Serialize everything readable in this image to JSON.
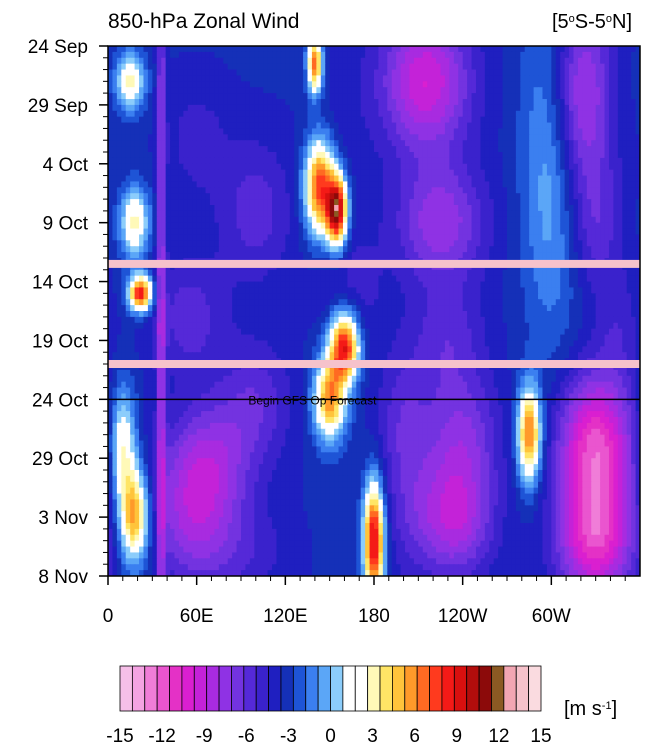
{
  "chart_data": {
    "type": "heatmap",
    "title": "850-hPa Zonal Wind",
    "region_label_parts": [
      "[5",
      "o",
      "S-5",
      "o",
      "N]"
    ],
    "y_axis": {
      "ticks": [
        "24 Sep",
        "29 Sep",
        "4 Oct",
        "9 Oct",
        "14 Oct",
        "19 Oct",
        "24 Oct",
        "29 Oct",
        "3 Nov",
        "8 Nov"
      ],
      "day_offsets": [
        0,
        5,
        10,
        15,
        20,
        25,
        30,
        35,
        40,
        45
      ],
      "range_days": [
        0,
        45
      ]
    },
    "x_axis": {
      "ticks": [
        "0",
        "60E",
        "120E",
        "180",
        "120W",
        "60W"
      ],
      "lon_values": [
        0,
        60,
        120,
        180,
        240,
        300
      ],
      "range_lon": [
        0,
        360
      ]
    },
    "forecast_line": {
      "label": "Begin GFS Op Forecast",
      "day_offset": 30
    },
    "missing_data_days": [
      18.5,
      27
    ],
    "colorbar": {
      "unit_parts": [
        "[m s",
        "-1",
        "]"
      ],
      "tick_labels": [
        "-15",
        "-12",
        "-9",
        "-6",
        "-3",
        "0",
        "3",
        "6",
        "9",
        "12",
        "15"
      ],
      "tick_values": [
        -15,
        -12,
        -9,
        -6,
        -3,
        0,
        3,
        6,
        9,
        12,
        15
      ],
      "colors": [
        "#f6bfe8",
        "#f4a3e2",
        "#f07dd8",
        "#ea55cf",
        "#e431c6",
        "#da1fd0",
        "#c422d8",
        "#a82be0",
        "#8f32e4",
        "#7333e0",
        "#5529d8",
        "#3a22cc",
        "#1f1fc0",
        "#1530b8",
        "#1e54d6",
        "#3b7ff0",
        "#5ba6f7",
        "#8ccdfb",
        "#ffffff",
        "#ffffff",
        "#fff9b8",
        "#ffe566",
        "#ffc43b",
        "#ff9a2a",
        "#ff6a22",
        "#ff3a1e",
        "#f41a17",
        "#d8100f",
        "#b20d0c",
        "#8c0a0a",
        "#8b5a23",
        "#f2a6b3",
        "#f6c2cb",
        "#fadbe0"
      ]
    },
    "wind_features": [
      {
        "lon": 15,
        "day": 3,
        "dlon": 10,
        "dday": 2.5,
        "value": 3
      },
      {
        "lon": 18,
        "day": 15,
        "dlon": 10,
        "dday": 3,
        "value": 3
      },
      {
        "lon": 22,
        "day": 21,
        "dlon": 8,
        "dday": 1.5,
        "value": 9
      },
      {
        "lon": 10,
        "day": 34,
        "dlon": 9,
        "dday": 5,
        "value": 3
      },
      {
        "lon": 18,
        "day": 40,
        "dlon": 10,
        "dday": 4,
        "value": 6
      },
      {
        "lon": 36,
        "day": 22,
        "dlon": 3,
        "dday": 45,
        "value": -8
      },
      {
        "lon": 60,
        "day": 8,
        "dlon": 22,
        "dday": 5,
        "value": -5
      },
      {
        "lon": 55,
        "day": 23,
        "dlon": 25,
        "dday": 5,
        "value": -6
      },
      {
        "lon": 58,
        "day": 40,
        "dlon": 28,
        "dday": 6,
        "value": -8
      },
      {
        "lon": 70,
        "day": 35,
        "dlon": 30,
        "dday": 5,
        "value": -7
      },
      {
        "lon": 100,
        "day": 14,
        "dlon": 25,
        "dday": 6,
        "value": -6
      },
      {
        "lon": 100,
        "day": 30,
        "dlon": 25,
        "dday": 5,
        "value": -6
      },
      {
        "lon": 95,
        "day": 43,
        "dlon": 28,
        "dday": 4,
        "value": -5
      },
      {
        "lon": 140,
        "day": 1.5,
        "dlon": 5,
        "dday": 2.5,
        "value": 7
      },
      {
        "lon": 143,
        "day": 12,
        "dlon": 10,
        "dday": 4,
        "value": 8
      },
      {
        "lon": 155,
        "day": 14,
        "dlon": 7,
        "dday": 3,
        "value": 11
      },
      {
        "lon": 160,
        "day": 25.5,
        "dlon": 10,
        "dday": 3,
        "value": 9
      },
      {
        "lon": 150,
        "day": 30,
        "dlon": 11,
        "dday": 3.5,
        "value": 6
      },
      {
        "lon": 180,
        "day": 42,
        "dlon": 7,
        "dday": 5,
        "value": 10
      },
      {
        "lon": 160,
        "day": 8,
        "dlon": 22,
        "dday": 12,
        "value": -4
      },
      {
        "lon": 165,
        "day": 21,
        "dlon": 22,
        "dday": 5,
        "value": -5
      },
      {
        "lon": 200,
        "day": 32,
        "dlon": 18,
        "dday": 6,
        "value": -6
      },
      {
        "lon": 205,
        "day": 40,
        "dlon": 20,
        "dday": 6,
        "value": -5
      },
      {
        "lon": 215,
        "day": 3,
        "dlon": 30,
        "dday": 6,
        "value": -10
      },
      {
        "lon": 225,
        "day": 15,
        "dlon": 30,
        "dday": 5,
        "value": -8
      },
      {
        "lon": 230,
        "day": 25,
        "dlon": 25,
        "dday": 5,
        "value": -6
      },
      {
        "lon": 240,
        "day": 33,
        "dlon": 25,
        "dday": 5,
        "value": -7
      },
      {
        "lon": 235,
        "day": 40,
        "dlon": 25,
        "dday": 5,
        "value": -9
      },
      {
        "lon": 285,
        "day": 33,
        "dlon": 8,
        "dday": 4,
        "value": 7
      },
      {
        "lon": 300,
        "day": 10,
        "dlon": 20,
        "dday": 15,
        "value": 0
      },
      {
        "lon": 320,
        "day": 4,
        "dlon": 20,
        "dday": 8,
        "value": -9
      },
      {
        "lon": 330,
        "day": 15,
        "dlon": 18,
        "dday": 6,
        "value": -6
      },
      {
        "lon": 330,
        "day": 34,
        "dlon": 25,
        "dday": 6,
        "value": -12
      },
      {
        "lon": 330,
        "day": 42,
        "dlon": 25,
        "dday": 5,
        "value": -11
      },
      {
        "lon": 345,
        "day": 24,
        "dlon": 15,
        "dday": 5,
        "value": -5
      }
    ]
  }
}
